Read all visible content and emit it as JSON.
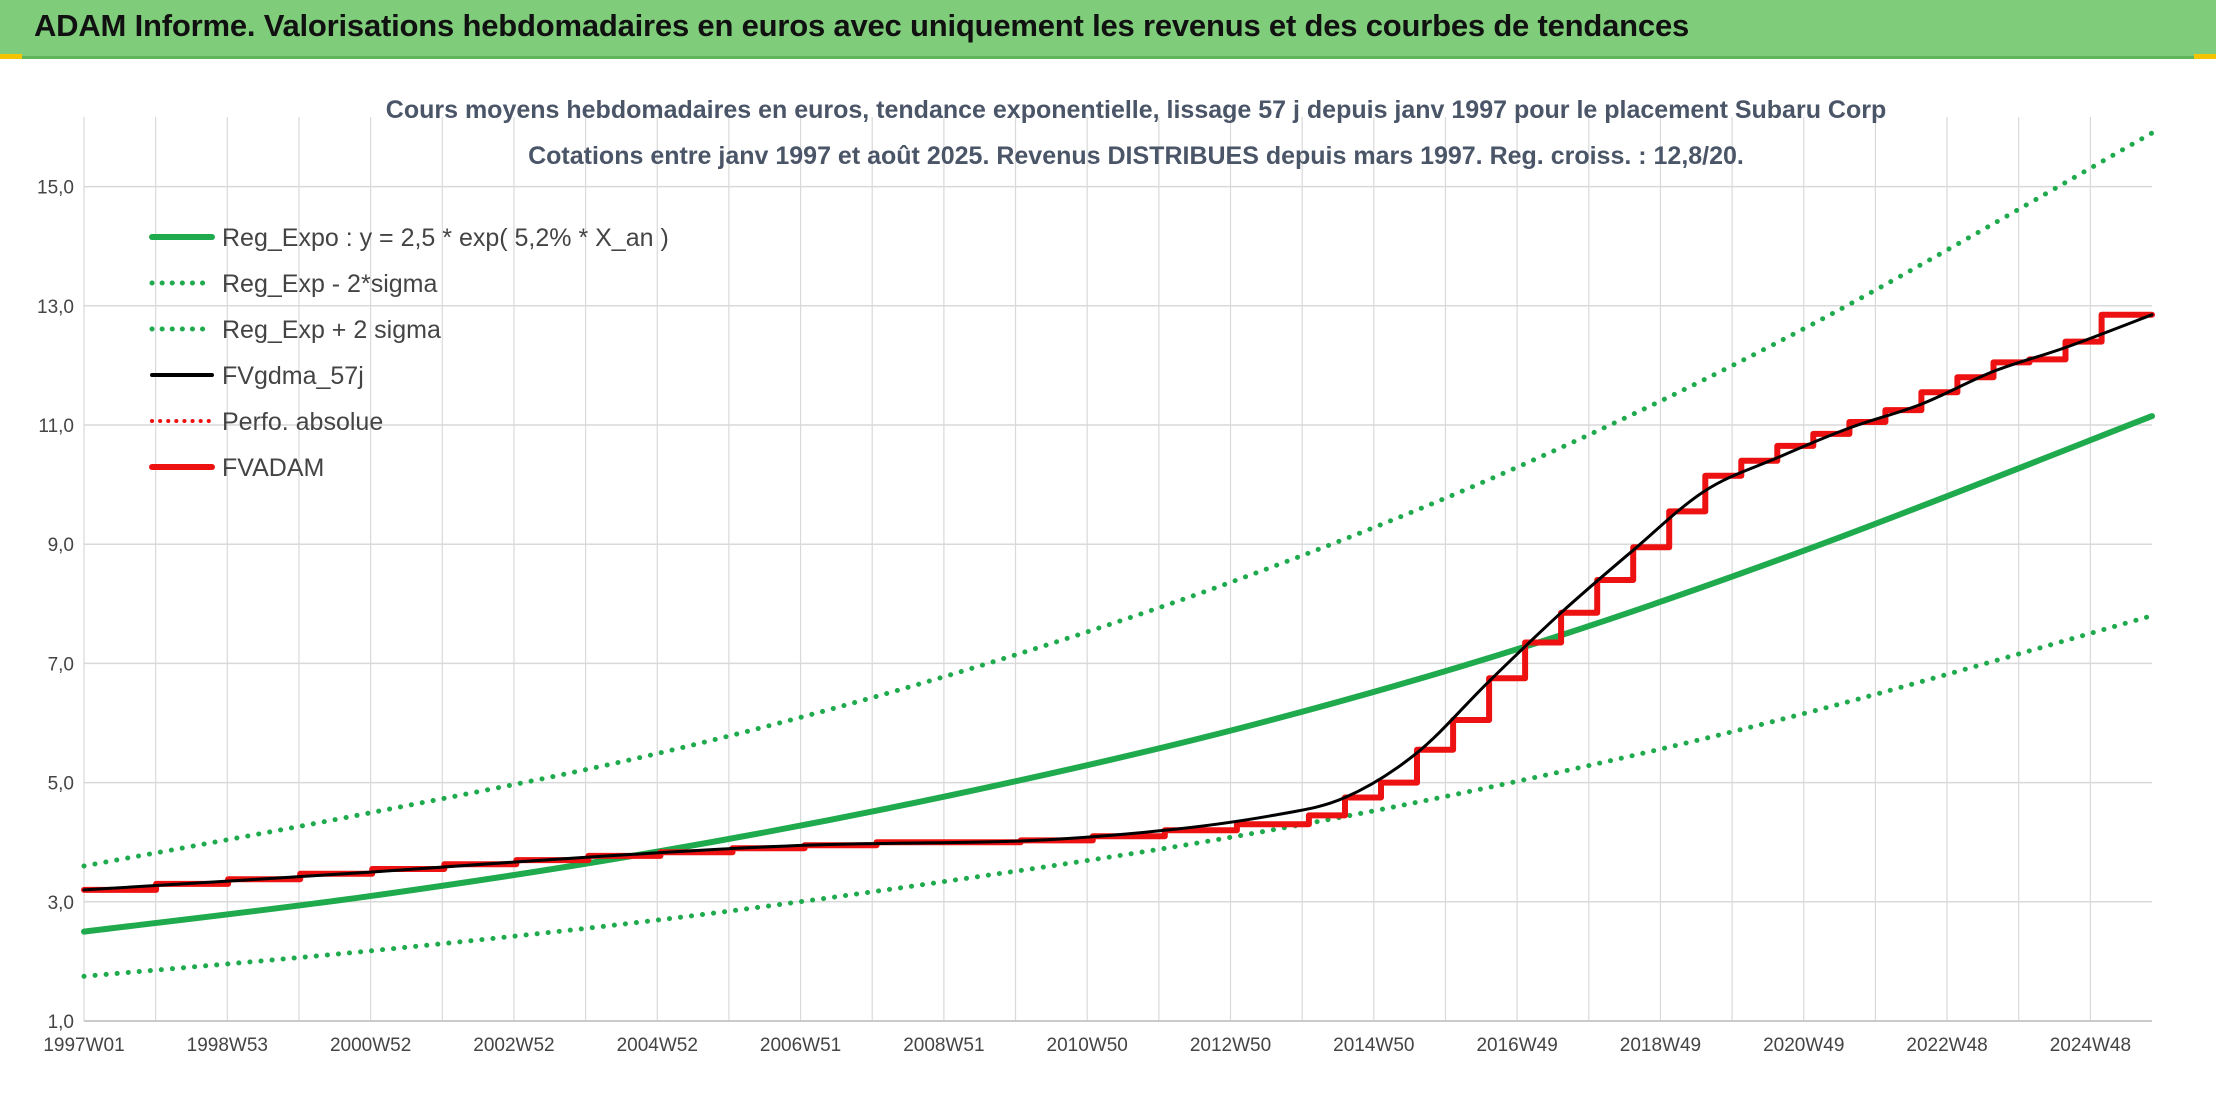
{
  "header": {
    "title": "ADAM Informe. Valorisations hebdomadaires en euros avec uniquement les revenus et des courbes de tendances"
  },
  "colors": {
    "header_bg": "#7fcc7a",
    "green": "#1faa4d",
    "red": "#ee1111",
    "black": "#000000",
    "grid": "#d9d9d9"
  },
  "chart_data": {
    "type": "line",
    "title": "Cours moyens hebdomadaires en euros, tendance exponentielle, lissage 57 j depuis janv 1997 pour le placement Subaru Corp",
    "subtitle": "Cotations entre janv 1997 et août 2025. Revenus DISTRIBUES depuis mars 1997. Reg. croiss. : 12,8/20.",
    "xlabel": "",
    "ylabel": "",
    "x_range": [
      1997.0,
      2025.7
    ],
    "ylim": [
      1,
      16
    ],
    "y_ticks": [
      "1,0",
      "3,0",
      "5,0",
      "7,0",
      "9,0",
      "11,0",
      "13,0",
      "15,0"
    ],
    "x_tick_labels": [
      "1997W01",
      "1998W53",
      "2000W52",
      "2002W52",
      "2004W52",
      "2006W51",
      "2008W51",
      "2010W50",
      "2012W50",
      "2014W50",
      "2016W49",
      "2018W49",
      "2020W49",
      "2022W48",
      "2024W48"
    ],
    "grid": true,
    "legend_position": "top-left",
    "legend": [
      {
        "label": "Reg_Expo : y = 2,5 * exp( 5,2% *  X_an )",
        "color": "#1faa4d",
        "style": "solid"
      },
      {
        "label": "Reg_Exp - 2*sigma",
        "color": "#1faa4d",
        "style": "dotted"
      },
      {
        "label": "Reg_Exp + 2 sigma",
        "color": "#1faa4d",
        "style": "dotted"
      },
      {
        "label": "FVgdma_57j",
        "color": "#000000",
        "style": "solid"
      },
      {
        "label": "Perfo. absolue",
        "color": "#ee1111",
        "style": "dotted"
      },
      {
        "label": "FVADAM",
        "color": "#ee1111",
        "style": "solid"
      }
    ],
    "series": [
      {
        "name": "Reg_Expo : y = 2,5 * exp( 5,2% *  X_an )",
        "x": [
          1997,
          2001,
          2005,
          2009,
          2013,
          2017,
          2021,
          2025.7
        ],
        "values": [
          2.5,
          3.1,
          3.85,
          4.78,
          5.9,
          7.28,
          8.95,
          11.15
        ]
      },
      {
        "name": "Reg_Exp - 2*sigma",
        "x": [
          1997,
          2001,
          2005,
          2009,
          2013,
          2017,
          2021,
          2025.7
        ],
        "values": [
          1.75,
          2.18,
          2.7,
          3.35,
          4.1,
          5.05,
          6.2,
          7.8
        ]
      },
      {
        "name": "Reg_Exp + 2 sigma",
        "x": [
          1997,
          2001,
          2005,
          2009,
          2013,
          2017,
          2021,
          2025.7
        ],
        "values": [
          3.6,
          4.5,
          5.5,
          6.8,
          8.4,
          10.35,
          12.7,
          15.9
        ]
      },
      {
        "name": "FVgdma_57j",
        "x": [
          1997,
          2001,
          2004,
          2007,
          2010,
          2012,
          2013.5,
          2014.5,
          2015.5,
          2016.5,
          2017.5,
          2018.5,
          2019.5,
          2020.5,
          2021.5,
          2022.5,
          2023.5,
          2024.5,
          2025.7
        ],
        "values": [
          3.2,
          3.5,
          3.75,
          3.95,
          4.02,
          4.2,
          4.45,
          4.75,
          5.5,
          6.7,
          7.85,
          8.9,
          9.9,
          10.45,
          10.95,
          11.35,
          11.9,
          12.3,
          12.85
        ]
      },
      {
        "name": "FVADAM",
        "x": [
          1997,
          1998,
          1999,
          2000,
          2001,
          2002,
          2003,
          2004,
          2005,
          2006,
          2007,
          2008,
          2009,
          2010,
          2011,
          2012,
          2013,
          2014,
          2014.5,
          2015,
          2015.5,
          2016,
          2016.5,
          2017,
          2017.5,
          2018,
          2018.5,
          2019,
          2019.5,
          2020,
          2020.5,
          2021,
          2021.5,
          2022,
          2022.5,
          2023,
          2023.5,
          2024,
          2024.5,
          2025,
          2025.7
        ],
        "values": [
          3.2,
          3.3,
          3.38,
          3.47,
          3.55,
          3.63,
          3.7,
          3.77,
          3.83,
          3.9,
          3.95,
          4.0,
          4.0,
          4.03,
          4.1,
          4.2,
          4.3,
          4.45,
          4.75,
          5.0,
          5.55,
          6.05,
          6.75,
          7.35,
          7.85,
          8.4,
          8.95,
          9.55,
          10.15,
          10.4,
          10.65,
          10.85,
          11.05,
          11.25,
          11.55,
          11.8,
          12.05,
          12.1,
          12.4,
          12.85,
          12.85
        ]
      }
    ]
  }
}
